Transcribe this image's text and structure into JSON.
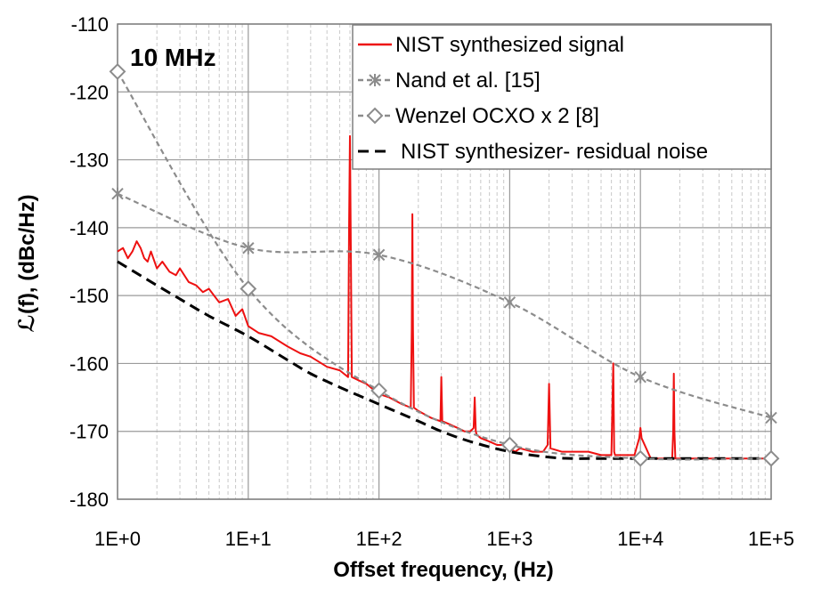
{
  "chart_data": {
    "type": "line",
    "xscale": "log",
    "xlim": [
      1,
      100000
    ],
    "ylim": [
      -180,
      -110
    ],
    "x_ticks": [
      1,
      10,
      100,
      1000,
      10000,
      100000
    ],
    "x_tick_labels": [
      "1E+0",
      "1E+1",
      "1E+2",
      "1E+3",
      "1E+4",
      "1E+5"
    ],
    "y_ticks": [
      -110,
      -120,
      -130,
      -140,
      -150,
      -160,
      -170,
      -180
    ],
    "y_tick_labels": [
      "-110",
      "-120",
      "-130",
      "-140",
      "-150",
      "-160",
      "-170",
      "-180"
    ],
    "xlabel": "Offset frequency, (Hz)",
    "ylabel": "ℒ(f), (dBc/Hz)",
    "annotation": "10 MHz",
    "grid": true,
    "legend_position": "top-right",
    "series": [
      {
        "name": "NIST synthesized signal",
        "color": "#ee1111",
        "style": "solid",
        "marker": "none",
        "x": [
          1,
          1.1,
          1.2,
          1.3,
          1.4,
          1.5,
          1.6,
          1.7,
          1.8,
          2,
          2.2,
          2.5,
          2.8,
          3,
          3.5,
          4,
          4.5,
          5,
          6,
          7,
          8,
          9,
          10,
          12,
          15,
          20,
          25,
          30,
          40,
          50,
          58,
          59,
          60,
          61,
          62,
          70,
          80,
          100,
          120,
          150,
          175,
          178,
          180,
          182,
          185,
          200,
          250,
          295,
          300,
          305,
          350,
          400,
          450,
          500,
          530,
          540,
          550,
          560,
          600,
          700,
          800,
          900,
          1000,
          1100,
          1200,
          1500,
          1800,
          1950,
          2000,
          2050,
          2500,
          3000,
          4000,
          5000,
          6000,
          6200,
          6300,
          6400,
          7000,
          8000,
          9000,
          9800,
          10000,
          10200,
          12000,
          15000,
          17500,
          17800,
          18000,
          18200,
          18500,
          20000,
          22000,
          25000,
          30000,
          35000,
          40000,
          43000,
          43500,
          44000,
          50000,
          60000,
          70000,
          80000,
          90000,
          100000
        ],
        "y": [
          -143.5,
          -143,
          -144.5,
          -143.5,
          -142,
          -143,
          -144.5,
          -145,
          -143.5,
          -146,
          -145,
          -146.5,
          -147,
          -146,
          -148,
          -148.5,
          -149.5,
          -149,
          -151,
          -150.5,
          -153,
          -152,
          -154.5,
          -155.5,
          -156,
          -157.5,
          -158.5,
          -159,
          -160.5,
          -161,
          -162,
          -140,
          -126.5,
          -145,
          -162,
          -162.5,
          -163,
          -164.5,
          -165,
          -166,
          -166.5,
          -155,
          -138,
          -155,
          -166.5,
          -167,
          -168,
          -168.5,
          -162,
          -168.5,
          -169,
          -169.5,
          -170,
          -170,
          -169.5,
          -165,
          -170,
          -170.5,
          -171,
          -171.5,
          -172,
          -172,
          -172.5,
          -173,
          -172.5,
          -173,
          -173,
          -172,
          -163,
          -172.5,
          -173,
          -173,
          -173,
          -173.5,
          -173.5,
          -160,
          -173,
          -173.5,
          -173.5,
          -173.5,
          -173.5,
          -171,
          -169.5,
          -171,
          -174,
          -174,
          -174,
          -170,
          -161.5,
          -170,
          -174,
          -174,
          -174,
          -174,
          -174,
          -174,
          -174,
          -174,
          -174,
          -174,
          -174,
          -174,
          -174,
          -174,
          -174,
          -174
        ]
      },
      {
        "name": "Nand et al. [15]",
        "color": "#8c8c8c",
        "style": "dashed",
        "marker": "asterisk",
        "x": [
          1,
          10,
          100,
          1000,
          10000,
          100000
        ],
        "y": [
          -135,
          -143,
          -144,
          -151,
          -162,
          -168
        ]
      },
      {
        "name": "Wenzel OCXO x 2 [8]",
        "color": "#8c8c8c",
        "style": "dashed",
        "marker": "diamond",
        "x": [
          1,
          10,
          100,
          1000,
          10000,
          100000
        ],
        "y": [
          -117,
          -149,
          -164,
          -172,
          -174,
          -174
        ]
      },
      {
        "name": "NIST synthesizer- residual noise",
        "color": "#000000",
        "style": "dashed",
        "marker": "none",
        "x": [
          1,
          2,
          3,
          5,
          10,
          20,
          30,
          50,
          100,
          200,
          300,
          500,
          1000,
          2000,
          3000,
          5000,
          10000,
          20000,
          50000,
          100000
        ],
        "y": [
          -145,
          -148.5,
          -150.5,
          -153,
          -156,
          -159.5,
          -161.5,
          -163.5,
          -166,
          -168.5,
          -170,
          -171.5,
          -173,
          -173.8,
          -174,
          -174,
          -174,
          -174,
          -174,
          -174
        ]
      }
    ]
  }
}
